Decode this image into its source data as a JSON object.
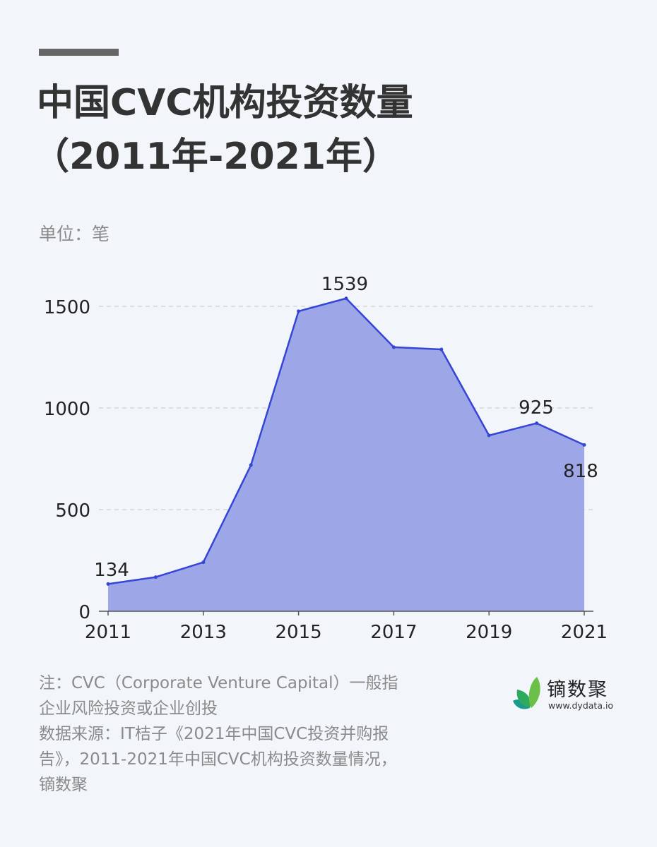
{
  "header": {
    "title_line1": "中国CVC机构投资数量",
    "title_line2": "（2011年-2021年）",
    "unit": "单位：笔"
  },
  "chart_data": {
    "type": "area",
    "title": "中国CVC机构投资数量（2011年-2021年）",
    "xlabel": "",
    "ylabel": "单位：笔",
    "x": [
      2011,
      2012,
      2013,
      2014,
      2015,
      2016,
      2017,
      2018,
      2019,
      2020,
      2021
    ],
    "values": [
      134,
      168,
      241,
      719,
      1476,
      1539,
      1299,
      1288,
      865,
      925,
      818
    ],
    "series": [
      {
        "name": "CVC机构投资数量",
        "values": [
          134,
          168,
          241,
          719,
          1476,
          1539,
          1299,
          1288,
          865,
          925,
          818
        ]
      }
    ],
    "xtick_labels": [
      "2011",
      "2013",
      "2015",
      "2017",
      "2019",
      "2021"
    ],
    "ytick_labels": [
      "0",
      "500",
      "1000",
      "1500"
    ],
    "ylim": [
      0,
      1650
    ],
    "grid": "horizontal dashed",
    "legend": "none",
    "annotations": [
      {
        "x": 2011,
        "label": "134"
      },
      {
        "x": 2016,
        "label": "1539"
      },
      {
        "x": 2020,
        "label": "925"
      },
      {
        "x": 2021,
        "label": "818"
      }
    ],
    "colors": {
      "line": "#3545d5",
      "fill": "#9da7e8",
      "grid": "#c8c8c8"
    }
  },
  "footer": {
    "note_line1": "注：CVC（Corporate Venture Capital）一般指",
    "note_line2": "企业风险投资或企业创投",
    "source_line1": "数据来源：IT桔子《2021年中国CVC投资并购报",
    "source_line2": "告》，2011-2021年中国CVC机构投资数量情况，",
    "source_line3": "镝数聚"
  },
  "logo": {
    "name": "镝数聚",
    "url": "www.dydata.io",
    "colors": [
      "#1a9a8c",
      "#2eaa5e",
      "#6cc04a"
    ]
  }
}
